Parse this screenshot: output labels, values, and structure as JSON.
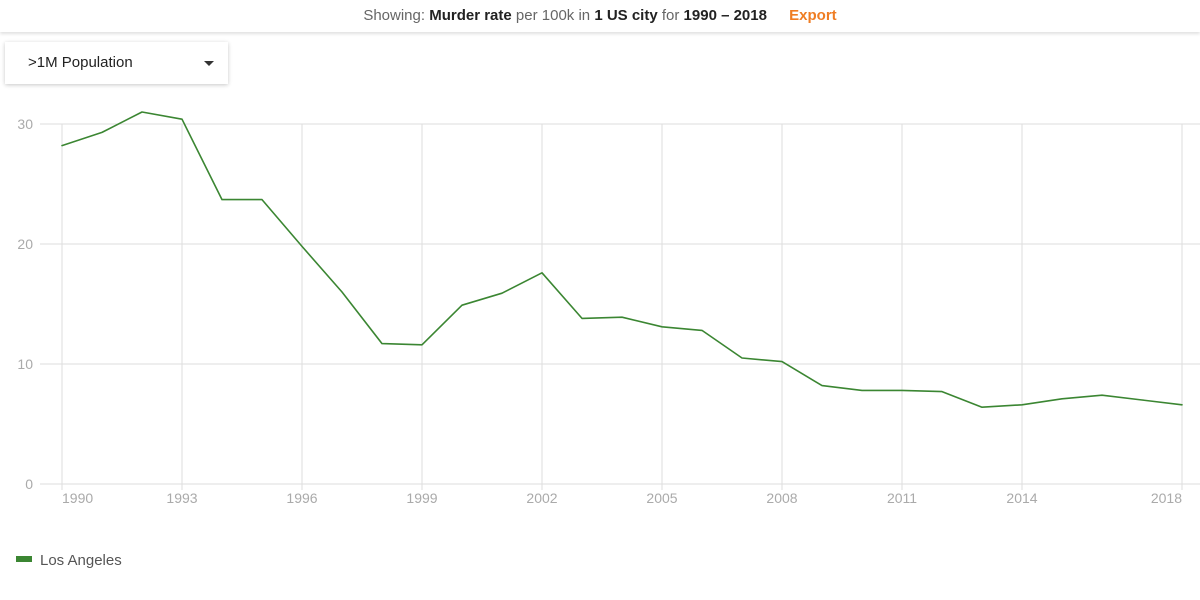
{
  "header": {
    "showing_label": "Showing:",
    "metric": "Murder rate",
    "per_label": "per 100k in",
    "count_label": "1 US city",
    "for_label": "for",
    "range": "1990 – 2018",
    "export_label": "Export"
  },
  "filter": {
    "selected": ">1M Population"
  },
  "colors": {
    "series": "#3b8632",
    "grid": "#dddddd",
    "tick": "#aaaaaa",
    "accent": "#ef7d23"
  },
  "chart_data": {
    "type": "line",
    "title": "",
    "xlabel": "",
    "ylabel": "",
    "xlim": [
      1990,
      2018
    ],
    "ylim": [
      0,
      30
    ],
    "xticks": [
      1990,
      1993,
      1996,
      1999,
      2002,
      2005,
      2008,
      2011,
      2014,
      2018
    ],
    "yticks": [
      0,
      10,
      20,
      30
    ],
    "grid": true,
    "legend_position": "bottom-left",
    "series": [
      {
        "name": "Los Angeles",
        "color": "#3b8632",
        "x": [
          1990,
          1991,
          1992,
          1993,
          1994,
          1995,
          1996,
          1997,
          1998,
          1999,
          2000,
          2001,
          2002,
          2003,
          2004,
          2005,
          2006,
          2007,
          2008,
          2009,
          2010,
          2011,
          2012,
          2013,
          2014,
          2015,
          2016,
          2017,
          2018
        ],
        "y": [
          28.2,
          29.3,
          31.0,
          30.4,
          23.7,
          23.7,
          19.8,
          16.0,
          11.7,
          11.6,
          14.9,
          15.9,
          17.6,
          13.8,
          13.9,
          13.1,
          12.8,
          10.5,
          10.2,
          8.2,
          7.8,
          7.8,
          7.7,
          6.4,
          6.6,
          7.1,
          7.4,
          7.0,
          6.6
        ]
      }
    ]
  }
}
